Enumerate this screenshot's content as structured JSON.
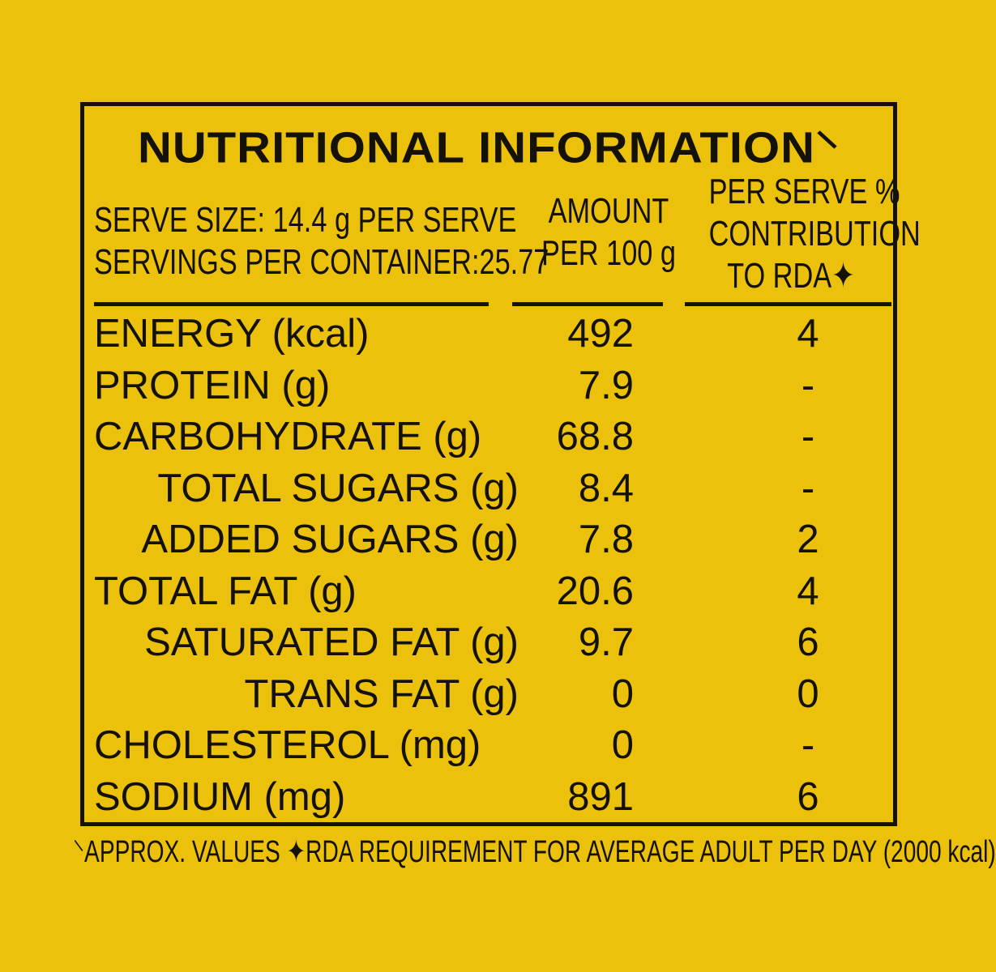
{
  "title": "NUTRITIONAL INFORMATION",
  "title_mark": "⸌",
  "serve_size": "SERVE SIZE: 14.4 g PER SERVE",
  "servings_per_container": "SERVINGS PER CONTAINER:25.77",
  "amount_header": [
    "AMOUNT",
    "PER 100 g"
  ],
  "rda_header": [
    "PER SERVE %",
    "CONTRIBUTION",
    "TO RDA✦"
  ],
  "rows": [
    {
      "label": "ENERGY (kcal)",
      "amount": "492",
      "rda": "4",
      "indent": false
    },
    {
      "label": "PROTEIN (g)",
      "amount": "7.9",
      "rda": "-",
      "indent": false
    },
    {
      "label": "CARBOHYDRATE (g)",
      "amount": "68.8",
      "rda": "-",
      "indent": false
    },
    {
      "label": "TOTAL SUGARS (g)",
      "amount": "8.4",
      "rda": "-",
      "indent": true
    },
    {
      "label": "ADDED SUGARS (g)",
      "amount": "7.8",
      "rda": "2",
      "indent": true
    },
    {
      "label": "TOTAL FAT (g)",
      "amount": "20.6",
      "rda": "4",
      "indent": false
    },
    {
      "label": "SATURATED FAT (g)",
      "amount": "9.7",
      "rda": "6",
      "indent": true
    },
    {
      "label": "TRANS FAT (g)",
      "amount": "0",
      "rda": "0",
      "indent": true
    },
    {
      "label": "CHOLESTEROL (mg)",
      "amount": "0",
      "rda": "-",
      "indent": false
    },
    {
      "label": "SODIUM (mg)",
      "amount": "891",
      "rda": "6",
      "indent": false
    }
  ],
  "footnote": "⸌APPROX. VALUES ✦RDA REQUIREMENT FOR AVERAGE ADULT PER DAY (2000 kcal)",
  "colors": {
    "background": "#ecc10b",
    "ink": "#141106"
  }
}
